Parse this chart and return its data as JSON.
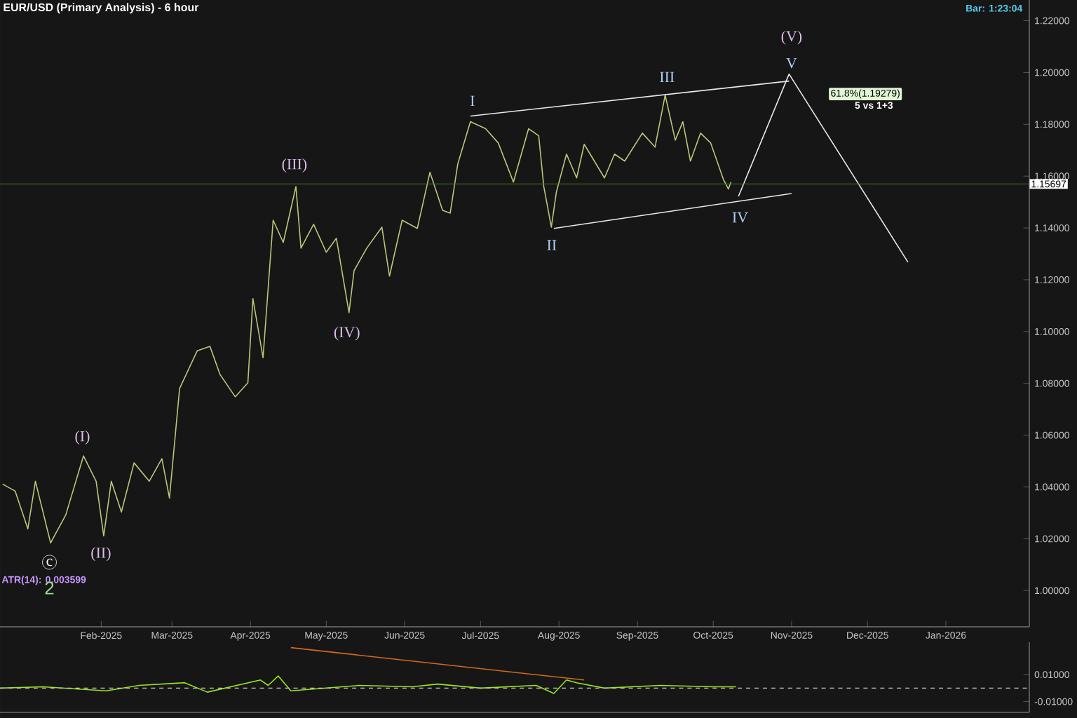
{
  "chart_data": [
    {
      "type": "line",
      "title": "EUR/USD (Primary Analysis) - 6 hour",
      "annotations": [
        "Bar: 1:23:04",
        "5 vs 1+3",
        "ATR(14): 0.003599",
        "I",
        "II",
        "III",
        "IV",
        "V",
        "(V)",
        "(I)",
        "(II)",
        "(III)",
        "(IV)",
        "c",
        "2",
        "61.8%(1.19279)"
      ],
      "xlim": [
        "2024-12-23",
        "2026-02-03"
      ],
      "xticks": [
        {
          "value": "2025-02-01",
          "label": "Feb-2025"
        },
        {
          "value": "2025-03-01",
          "label": "Mar-2025"
        },
        {
          "value": "2025-04-01",
          "label": "Apr-2025"
        },
        {
          "value": "2025-05-01",
          "label": "May-2025"
        },
        {
          "value": "2025-06-01",
          "label": "Jun-2025"
        },
        {
          "value": "2025-07-01",
          "label": "Jul-2025"
        },
        {
          "value": "2025-08-01",
          "label": "Aug-2025"
        },
        {
          "value": "2025-09-01",
          "label": "Sep-2025"
        },
        {
          "value": "2025-10-01",
          "label": "Oct-2025"
        },
        {
          "value": "2025-11-01",
          "label": "Nov-2025"
        },
        {
          "value": "2025-12-01",
          "label": "Dec-2025"
        },
        {
          "value": "2026-01-01",
          "label": "Jan-2026"
        }
      ],
      "ylim": [
        0.986,
        1.228
      ],
      "yticks": [
        {
          "value": 1.0,
          "label": "1.00000"
        },
        {
          "value": 1.02,
          "label": "1.02000"
        },
        {
          "value": 1.04,
          "label": "1.04000"
        },
        {
          "value": 1.06,
          "label": "1.06000"
        },
        {
          "value": 1.08,
          "label": "1.08000"
        },
        {
          "value": 1.1,
          "label": "1.10000"
        },
        {
          "value": 1.12,
          "label": "1.12000"
        },
        {
          "value": 1.14,
          "label": "1.14000"
        },
        {
          "value": 1.16,
          "label": "1.16000"
        },
        {
          "value": 1.18,
          "label": "1.18000"
        },
        {
          "value": 1.2,
          "label": "1.20000"
        },
        {
          "value": 1.22,
          "label": "1.22000"
        }
      ],
      "ref_lines": [
        {
          "axis": "y",
          "value": 1.15697,
          "label": "1.15697",
          "color": "#3f5f2a"
        }
      ],
      "series": [
        {
          "color": "#b9c77a",
          "x": [
            "2024-12-24",
            "2024-12-29",
            "2025-01-03",
            "2025-01-06",
            "2025-01-12",
            "2025-01-18",
            "2025-01-25",
            "2025-01-30",
            "2025-02-02",
            "2025-02-05",
            "2025-02-09",
            "2025-02-14",
            "2025-02-20",
            "2025-02-25",
            "2025-02-28",
            "2025-03-04",
            "2025-03-11",
            "2025-03-16",
            "2025-03-20",
            "2025-03-26",
            "2025-03-31",
            "2025-04-02",
            "2025-04-06",
            "2025-04-10",
            "2025-04-14",
            "2025-04-19",
            "2025-04-21",
            "2025-04-26",
            "2025-05-01",
            "2025-05-05",
            "2025-05-10",
            "2025-05-12",
            "2025-05-17",
            "2025-05-23",
            "2025-05-26",
            "2025-05-31",
            "2025-06-06",
            "2025-06-11",
            "2025-06-16",
            "2025-06-19",
            "2025-06-22",
            "2025-06-27",
            "2025-07-03",
            "2025-07-08",
            "2025-07-14",
            "2025-07-20",
            "2025-07-24",
            "2025-07-26",
            "2025-07-29",
            "2025-07-31",
            "2025-08-04",
            "2025-08-08",
            "2025-08-11",
            "2025-08-19",
            "2025-08-23",
            "2025-08-27",
            "2025-09-03",
            "2025-09-08",
            "2025-09-12",
            "2025-09-16",
            "2025-09-19",
            "2025-09-22",
            "2025-09-26",
            "2025-09-30",
            "2025-10-05",
            "2025-10-07",
            "2025-10-08"
          ],
          "values": [
            1.0411,
            1.0384,
            1.0238,
            1.0422,
            1.0184,
            1.0292,
            1.052,
            1.0422,
            1.0211,
            1.0422,
            1.0303,
            1.0493,
            1.0422,
            1.0509,
            1.0357,
            1.078,
            1.0926,
            1.0943,
            1.0834,
            1.0748,
            1.0802,
            1.1127,
            1.0899,
            1.143,
            1.1344,
            1.156,
            1.1322,
            1.1414,
            1.1306,
            1.136,
            1.1073,
            1.1235,
            1.1322,
            1.1403,
            1.1214,
            1.143,
            1.1398,
            1.1615,
            1.1468,
            1.1457,
            1.1647,
            1.181,
            1.1783,
            1.1728,
            1.1577,
            1.1783,
            1.1756,
            1.156,
            1.1403,
            1.1539,
            1.1685,
            1.1593,
            1.1723,
            1.1593,
            1.1685,
            1.1658,
            1.1766,
            1.1712,
            1.1913,
            1.1739,
            1.181,
            1.1658,
            1.1766,
            1.1728,
            1.1588,
            1.155,
            1.1577
          ]
        },
        {
          "color": "#e8e8e8",
          "x": [
            "2025-06-27",
            "2025-10-31"
          ],
          "values": [
            1.1832,
            1.1967
          ]
        },
        {
          "color": "#e8e8e8",
          "x": [
            "2025-07-30",
            "2025-11-01"
          ],
          "values": [
            1.1398,
            1.1533
          ]
        },
        {
          "color": "#e8e8e8",
          "x": [
            "2025-10-11",
            "2025-10-31",
            "2025-12-17"
          ],
          "values": [
            1.1522,
            1.1994,
            1.1268
          ]
        }
      ]
    },
    {
      "type": "line",
      "tick_labels": "y",
      "xlim": [
        "2024-12-23",
        "2026-02-03"
      ],
      "ylim": [
        -0.018,
        0.034
      ],
      "yticks": [
        {
          "value": 0.01,
          "label": "0.01000"
        },
        {
          "value": -0.01,
          "label": "-0.01000"
        }
      ],
      "ref_lines": [
        {
          "axis": "y",
          "value": 0,
          "color": "#cccccc",
          "line_style": "dashed"
        }
      ],
      "series": [
        {
          "color": "#9be31c",
          "x": [
            "2024-12-23",
            "2025-01-09",
            "2025-02-03",
            "2025-02-16",
            "2025-03-06",
            "2025-03-15",
            "2025-04-05",
            "2025-04-08",
            "2025-04-12",
            "2025-04-17",
            "2025-05-14",
            "2025-06-04",
            "2025-06-14",
            "2025-07-01",
            "2025-07-23",
            "2025-07-30",
            "2025-08-04",
            "2025-08-08",
            "2025-08-19",
            "2025-09-10",
            "2025-10-01",
            "2025-10-10"
          ],
          "values": [
            0.0,
            0.001,
            -0.002,
            0.002,
            0.004,
            -0.003,
            0.006,
            0.002,
            0.009,
            -0.002,
            0.002,
            0.001,
            0.003,
            0.0,
            0.002,
            -0.004,
            0.006,
            0.004,
            0.0,
            0.002,
            0.001,
            0.001
          ]
        },
        {
          "color": "#d2691e",
          "x": [
            "2025-04-17",
            "2025-08-11"
          ],
          "values": [
            0.03,
            0.006
          ]
        }
      ]
    }
  ]
}
